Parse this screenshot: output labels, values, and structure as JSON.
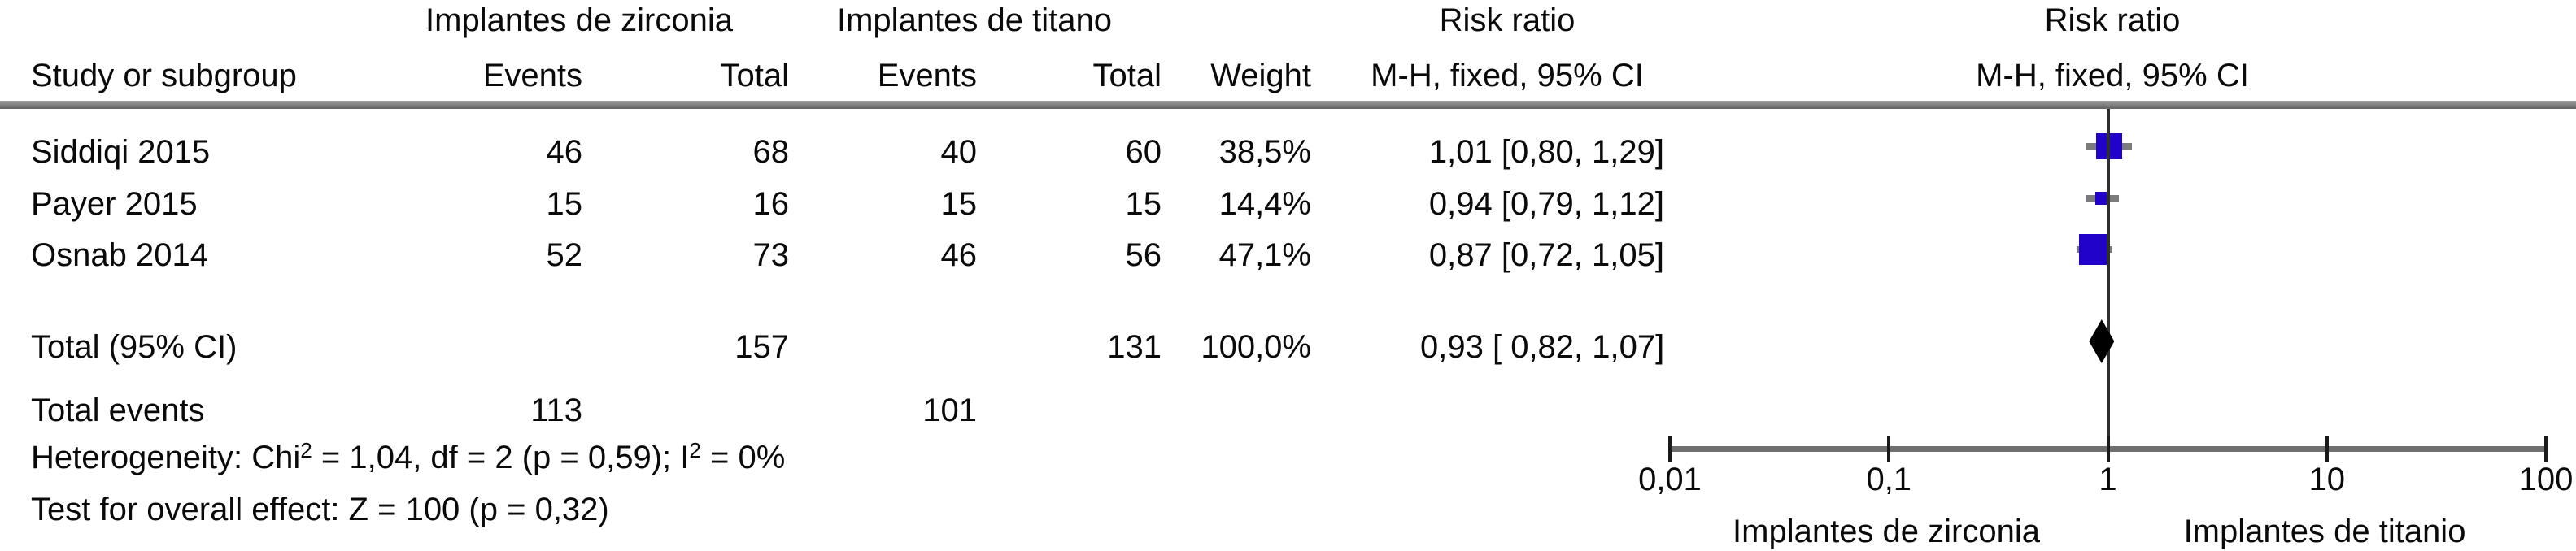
{
  "header": {
    "group1": "Implantes de zirconia",
    "group2": "Implantes de titano",
    "risk_ratio_1": "Risk ratio",
    "risk_ratio_2": "Risk ratio",
    "study_col": "Study or subgroup",
    "events_col_1": "Events",
    "total_col_1": "Total",
    "events_col_2": "Events",
    "total_col_2": "Total",
    "weight_col": "Weight",
    "mh_1": "M-H, fixed, 95% CI",
    "mh_2": "M-H, fixed, 95% CI"
  },
  "stats": {
    "heterogeneity_prefix": "Heterogeneity: Chi",
    "het_sup1": "2",
    "heterogeneity_mid": " = 1,04, df = 2 (p = 0,59); I",
    "het_sup2": "2",
    "heterogeneity_suffix": " = 0%",
    "overall_effect": "Test for overall effect: Z = 100 (p = 0,32)"
  },
  "chart_data": {
    "type": "scatter",
    "plot_style": "forest-plot",
    "title": "",
    "x_scale": "log10",
    "x_range": [
      0.01,
      100
    ],
    "effect_line_value": 1,
    "grid": false,
    "legend_position": "none",
    "x_ticks": {
      "labels": [
        "0,01",
        "0,1",
        "1",
        "10",
        "100"
      ],
      "values": [
        0.01,
        0.1,
        1,
        10,
        100
      ]
    },
    "studies": [
      {
        "name": "Siddiqi 2015",
        "events1": "46",
        "total1": "68",
        "events2": "40",
        "total2": "60",
        "weight": "38,5%",
        "weight_value": 38.5,
        "rr": 1.01,
        "ci_low": 0.8,
        "ci_high": 1.29,
        "ci_text": "1,01 [0,80, 1,29]"
      },
      {
        "name": "Payer 2015",
        "events1": "15",
        "total1": "16",
        "events2": "15",
        "total2": "15",
        "weight": "14,4%",
        "weight_value": 14.4,
        "rr": 0.94,
        "ci_low": 0.79,
        "ci_high": 1.12,
        "ci_text": "0,94 [0,79, 1,12]"
      },
      {
        "name": "Osnab 2014",
        "events1": "52",
        "total1": "73",
        "events2": "46",
        "total2": "56",
        "weight": "47,1%",
        "weight_value": 47.1,
        "rr": 0.87,
        "ci_low": 0.72,
        "ci_high": 1.05,
        "ci_text": "0,87 [0,72, 1,05]"
      }
    ],
    "total": {
      "label": "Total (95% CI)",
      "total1": "157",
      "total2": "131",
      "weight": "100,0%",
      "rr": 0.93,
      "ci_low": 0.82,
      "ci_high": 1.07,
      "ci_text": "0,93 [ 0,82, 1,07]"
    },
    "total_events": {
      "label": "Total events",
      "events1": "113",
      "events2": "101"
    },
    "axis_left_label": "Implantes de zirconia",
    "axis_right_label": "Implantes de titanio"
  },
  "colors": {
    "square": "#2102c8",
    "diamond": "#000000",
    "ci_line": "#7b7b7b",
    "axis": "#6f6f6f",
    "effect_line": "#2e2e2e",
    "rule": "#808080"
  }
}
